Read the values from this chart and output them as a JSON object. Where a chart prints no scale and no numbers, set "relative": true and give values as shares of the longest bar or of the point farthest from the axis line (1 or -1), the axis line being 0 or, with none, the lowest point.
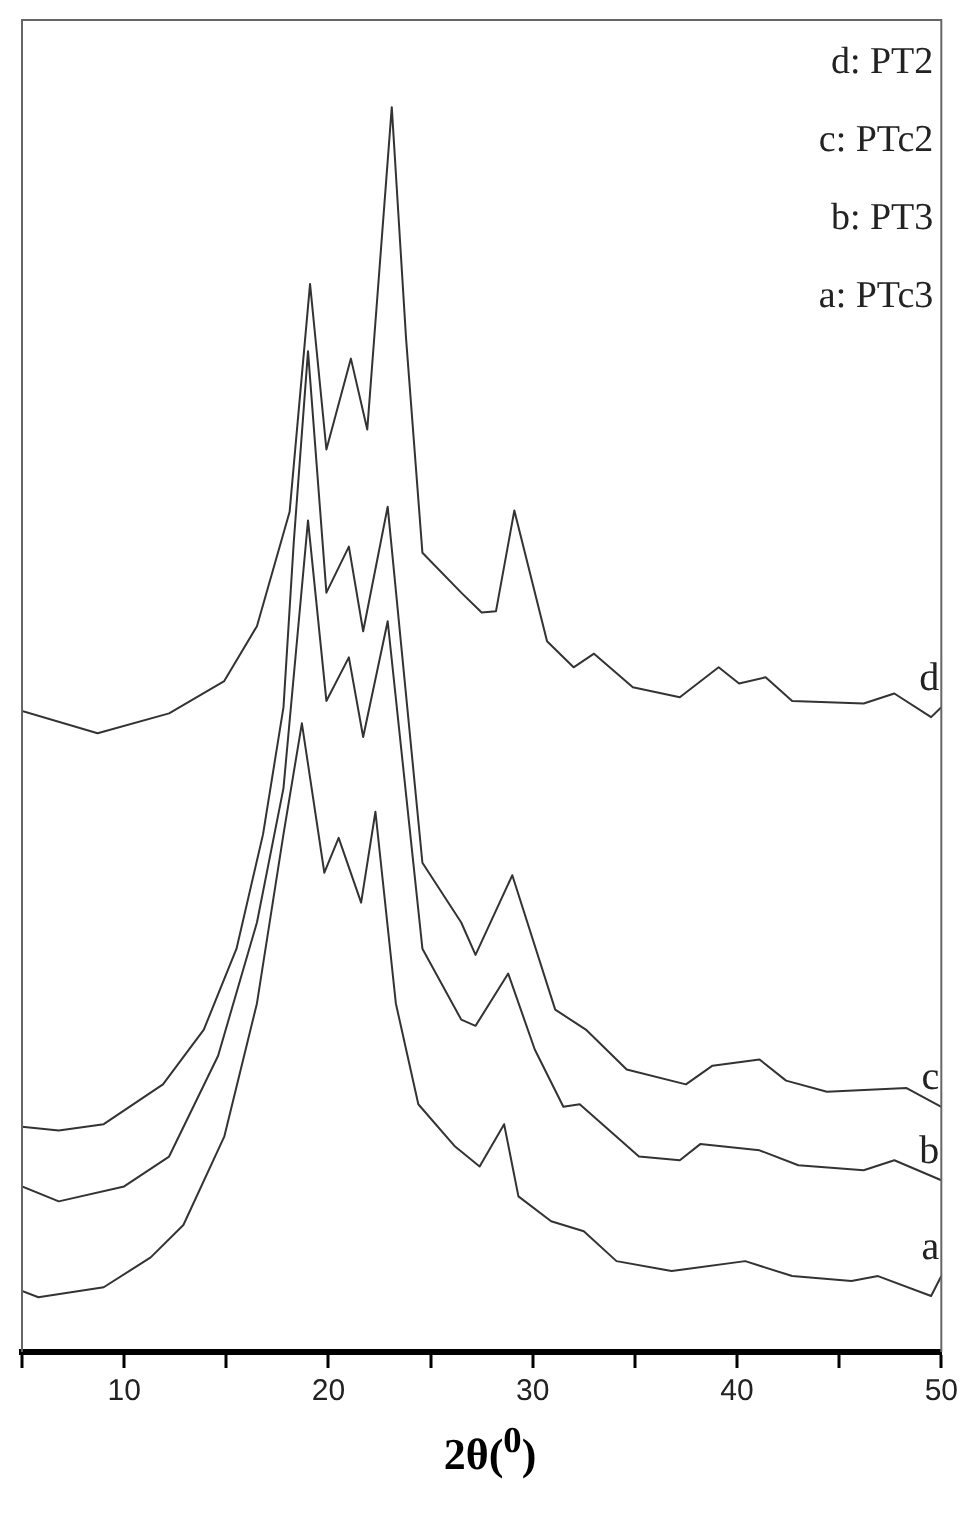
{
  "chart_data": {
    "type": "line",
    "relative": true,
    "xlabel": "2θ($^{0}$)",
    "xlim": [
      5,
      50
    ],
    "xticks": [
      {
        "value": 5,
        "label": null
      },
      10,
      {
        "value": 15,
        "label": null
      },
      20,
      {
        "value": 25,
        "label": null
      },
      30,
      {
        "value": 35,
        "label": null
      },
      40,
      {
        "value": 45,
        "label": null
      },
      50
    ],
    "tick_labels": "x",
    "grid": false,
    "legend": false,
    "marker": "none",
    "line_style": "solid",
    "annotations": [
      "d: PT2",
      "c: PTc2",
      "b: PT3",
      "a: PTc3"
    ],
    "series": [
      {
        "name": "a",
        "color": "#333333",
        "x": [
          5,
          5.8,
          9,
          11.3,
          12.9,
          14.9,
          16.5,
          17.8,
          18.7,
          19.8,
          20.5,
          21.6,
          22.3,
          23.3,
          24.4,
          26.2,
          27.4,
          28.6,
          29.3,
          30.9,
          32.5,
          34.1,
          36.8,
          40.4,
          42.7,
          45.6,
          46.9,
          49.5,
          50
        ],
        "values": [
          0.049,
          0.044,
          0.052,
          0.076,
          0.102,
          0.173,
          0.28,
          0.416,
          0.505,
          0.385,
          0.413,
          0.361,
          0.434,
          0.28,
          0.199,
          0.165,
          0.149,
          0.183,
          0.125,
          0.105,
          0.097,
          0.073,
          0.065,
          0.073,
          0.061,
          0.057,
          0.061,
          0.045,
          0.061
        ]
      },
      {
        "name": "b",
        "color": "#333333",
        "x": [
          5,
          6.8,
          10,
          12.2,
          14.6,
          16.5,
          17.8,
          19,
          19.9,
          21,
          21.7,
          22.9,
          24.6,
          26.5,
          27.2,
          28.8,
          30.1,
          31.5,
          32.3,
          35.2,
          37.2,
          38.2,
          41.1,
          43,
          46.2,
          47.7,
          50
        ],
        "values": [
          0.133,
          0.121,
          0.133,
          0.157,
          0.238,
          0.345,
          0.453,
          0.668,
          0.523,
          0.558,
          0.494,
          0.587,
          0.324,
          0.267,
          0.262,
          0.304,
          0.243,
          0.197,
          0.199,
          0.157,
          0.154,
          0.167,
          0.162,
          0.15,
          0.146,
          0.154,
          0.138
        ]
      },
      {
        "name": "c",
        "color": "#333333",
        "x": [
          5,
          6.8,
          9,
          11.9,
          13.9,
          15.5,
          16.8,
          17.8,
          18.3,
          19,
          19.9,
          21,
          21.7,
          22.9,
          24.6,
          26.5,
          27.2,
          29,
          31.1,
          32.6,
          34.6,
          37.5,
          38.8,
          41.1,
          42.4,
          44.4,
          48.3,
          50
        ],
        "values": [
          0.181,
          0.178,
          0.183,
          0.215,
          0.259,
          0.324,
          0.416,
          0.518,
          0.65,
          0.804,
          0.61,
          0.647,
          0.579,
          0.679,
          0.393,
          0.345,
          0.319,
          0.383,
          0.275,
          0.259,
          0.227,
          0.215,
          0.23,
          0.235,
          0.218,
          0.209,
          0.212,
          0.197
        ]
      },
      {
        "name": "d",
        "color": "#333333",
        "x": [
          5,
          8.7,
          12.2,
          14.9,
          16.5,
          18.1,
          19.1,
          19.9,
          21.1,
          21.9,
          23.1,
          23.8,
          24.6,
          26.5,
          27.5,
          28.2,
          29.1,
          30.7,
          32,
          33,
          34.9,
          37.2,
          39.1,
          40.1,
          41.4,
          42.7,
          46.2,
          47.7,
          49.5,
          50
        ],
        "values": [
          0.515,
          0.497,
          0.513,
          0.539,
          0.583,
          0.675,
          0.858,
          0.725,
          0.798,
          0.741,
          1,
          0.814,
          0.642,
          0.61,
          0.594,
          0.595,
          0.676,
          0.571,
          0.55,
          0.561,
          0.534,
          0.526,
          0.55,
          0.537,
          0.542,
          0.523,
          0.521,
          0.529,
          0.51,
          0.518
        ]
      }
    ]
  }
}
